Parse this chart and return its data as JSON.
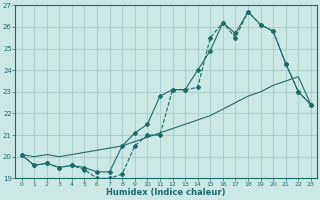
{
  "xlabel": "Humidex (Indice chaleur)",
  "background_color": "#cce8e5",
  "grid_color": "#aacfcc",
  "line_color": "#1a6b6b",
  "xlim": [
    -0.5,
    23.5
  ],
  "ylim": [
    19,
    27
  ],
  "xticks": [
    0,
    1,
    2,
    3,
    4,
    5,
    6,
    7,
    8,
    9,
    10,
    11,
    12,
    13,
    14,
    15,
    16,
    17,
    18,
    19,
    20,
    21,
    22,
    23
  ],
  "yticks": [
    19,
    20,
    21,
    22,
    23,
    24,
    25,
    26,
    27
  ],
  "line1_x": [
    0,
    1,
    2,
    3,
    4,
    5,
    6,
    7,
    8,
    9,
    10,
    11,
    12,
    13,
    14,
    15,
    16,
    17,
    18,
    19,
    20,
    21,
    22,
    23
  ],
  "line1_y": [
    20.1,
    19.6,
    19.7,
    19.5,
    19.6,
    19.4,
    19.0,
    19.0,
    19.2,
    20.5,
    21.0,
    21.0,
    23.1,
    23.1,
    23.2,
    25.5,
    26.2,
    25.5,
    26.7,
    26.1,
    25.8,
    24.3,
    23.0,
    22.4
  ],
  "line2_x": [
    0,
    1,
    2,
    3,
    4,
    5,
    6,
    7,
    8,
    9,
    10,
    11,
    12,
    13,
    14,
    15,
    16,
    17,
    18,
    19,
    20,
    21,
    22,
    23
  ],
  "line2_y": [
    20.1,
    19.6,
    19.7,
    19.5,
    19.6,
    19.5,
    19.3,
    19.3,
    20.5,
    21.1,
    21.5,
    22.8,
    23.1,
    23.1,
    24.0,
    24.9,
    26.2,
    25.7,
    26.7,
    26.1,
    25.8,
    24.3,
    23.0,
    22.4
  ],
  "line3_x": [
    0,
    1,
    2,
    3,
    4,
    5,
    6,
    7,
    8,
    9,
    10,
    11,
    12,
    13,
    14,
    15,
    16,
    17,
    18,
    19,
    20,
    21,
    22,
    23
  ],
  "line3_y": [
    20.1,
    20.0,
    20.1,
    20.0,
    20.1,
    20.2,
    20.3,
    20.4,
    20.5,
    20.7,
    20.9,
    21.1,
    21.3,
    21.5,
    21.7,
    21.9,
    22.2,
    22.5,
    22.8,
    23.0,
    23.3,
    23.5,
    23.7,
    22.4
  ]
}
